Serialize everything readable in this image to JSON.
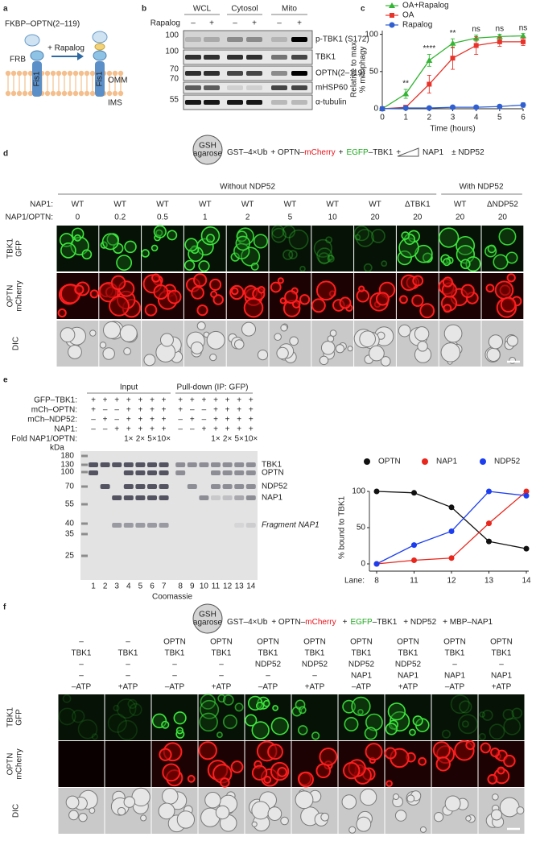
{
  "panels": {
    "a": {
      "label": "a",
      "construct": "FKBP–OPTN(2–119)",
      "treatment": "+ Rapalog",
      "frb": "FRB",
      "fis1": [
        "Fis1",
        "Fis1"
      ],
      "omm": "OMM",
      "ims": "IMS"
    },
    "b": {
      "label": "b",
      "treatment": "Rapalog",
      "groups": [
        "WCL",
        "Cytosol",
        "Mito"
      ],
      "signs": [
        "–",
        "+",
        "–",
        "+",
        "–",
        "+"
      ],
      "markers": [
        100,
        100,
        70,
        70,
        55
      ],
      "blots": [
        "p-TBK1 (S172)",
        "TBK1",
        "OPTN(2–119)",
        "mHSP60",
        "α-tubulin"
      ]
    },
    "c": {
      "label": "c"
    },
    "d": {
      "label": "d",
      "bead": [
        "GSH",
        "agarose"
      ],
      "scheme": [
        {
          "text": "GST–4×Ub"
        },
        {
          "text": "+ OPTN–"
        },
        {
          "text": "mCherry",
          "color": "#e8131b"
        },
        {
          "text": "+"
        },
        {
          "text": "EGFP",
          "color": "#1fa71f"
        },
        {
          "text": "–TBK1"
        },
        {
          "text": "+"
        }
      ],
      "scheme_after_wedge": [
        {
          "text": "NAP1"
        },
        {
          "text": "± NDP52"
        }
      ],
      "groups": [
        "Without NDP52",
        "With NDP52"
      ],
      "row_headers": [
        "NAP1:",
        "NAP1/OPTN:"
      ],
      "columns": [
        {
          "nap1": "WT",
          "ratio": 0
        },
        {
          "nap1": "WT",
          "ratio": 0.2
        },
        {
          "nap1": "WT",
          "ratio": 0.5
        },
        {
          "nap1": "WT",
          "ratio": 1
        },
        {
          "nap1": "WT",
          "ratio": 2
        },
        {
          "nap1": "WT",
          "ratio": 5
        },
        {
          "nap1": "WT",
          "ratio": 10
        },
        {
          "nap1": "WT",
          "ratio": 20
        },
        {
          "nap1": "ΔTBK1",
          "ratio": 20
        },
        {
          "nap1": "WT",
          "ratio": 20
        },
        {
          "nap1": "ΔNDP52",
          "ratio": 20
        }
      ],
      "rows": [
        [
          "TBK1",
          "GFP"
        ],
        [
          "OPTN",
          "mCherry"
        ],
        [
          "DIC"
        ]
      ]
    },
    "e": {
      "label": "e",
      "groups": [
        "Input",
        "Pull-down (IP: GFP)"
      ],
      "conditions": [
        {
          "name": "GFP–TBK1:",
          "signs": [
            "+",
            "+",
            "+",
            "+",
            "+",
            "+",
            "+",
            "+",
            "+",
            "+",
            "+",
            "+",
            "+",
            "+"
          ]
        },
        {
          "name": "mCh–OPTN:",
          "signs": [
            "+",
            "–",
            "–",
            "+",
            "+",
            "+",
            "+",
            "+",
            "–",
            "–",
            "+",
            "+",
            "+",
            "+"
          ]
        },
        {
          "name": "mCh–NDP52:",
          "signs": [
            "–",
            "+",
            "–",
            "+",
            "+",
            "+",
            "+",
            "–",
            "+",
            "–",
            "+",
            "+",
            "+",
            "+"
          ]
        },
        {
          "name": "NAP1:",
          "signs": [
            "–",
            "–",
            "+",
            "+",
            "+",
            "+",
            "+",
            "–",
            "–",
            "+",
            "+",
            "+",
            "+",
            "+"
          ]
        }
      ],
      "fold": {
        "name": "Fold NAP1/OPTN:",
        "values": [
          null,
          null,
          null,
          "1×",
          "2×",
          "5×",
          "10×",
          null,
          null,
          null,
          "1×",
          "2×",
          "5×",
          "10×"
        ]
      },
      "unit": "kDa",
      "markers": [
        180,
        130,
        100,
        70,
        55,
        40,
        35,
        25
      ],
      "bands": [
        "TBK1",
        "OPTN",
        "NDP52",
        "NAP1",
        "Fragment NAP1"
      ],
      "lanes": [
        1,
        2,
        3,
        4,
        5,
        6,
        7,
        8,
        9,
        10,
        11,
        12,
        13,
        14
      ],
      "stain": "Coomassie"
    },
    "f": {
      "label": "f",
      "bead": [
        "GSH",
        "agarose"
      ],
      "scheme": [
        {
          "text": "GST–4×Ub"
        },
        {
          "text": "+ OPTN–"
        },
        {
          "text": "mCherry",
          "color": "#e8131b"
        },
        {
          "text": "+"
        },
        {
          "text": "EGFP",
          "color": "#1fa71f"
        },
        {
          "text": "–TBK1"
        },
        {
          "text": "+ NDP52"
        },
        {
          "text": "+ MBP–NAP1"
        }
      ],
      "columns": [
        [
          "–",
          "TBK1",
          "–",
          "–",
          "–ATP"
        ],
        [
          "–",
          "TBK1",
          "–",
          "–",
          "+ATP"
        ],
        [
          "OPTN",
          "TBK1",
          "–",
          "–",
          "–ATP"
        ],
        [
          "OPTN",
          "TBK1",
          "–",
          "–",
          "+ATP"
        ],
        [
          "OPTN",
          "TBK1",
          "NDP52",
          "–",
          "–ATP"
        ],
        [
          "OPTN",
          "TBK1",
          "NDP52",
          "–",
          "+ATP"
        ],
        [
          "OPTN",
          "TBK1",
          "NDP52",
          "NAP1",
          "–ATP"
        ],
        [
          "OPTN",
          "TBK1",
          "NDP52",
          "NAP1",
          "+ATP"
        ],
        [
          "OPTN",
          "TBK1",
          "–",
          "NAP1",
          "–ATP"
        ],
        [
          "OPTN",
          "TBK1",
          "–",
          "NAP1",
          "+ATP"
        ]
      ],
      "rows": [
        [
          "TBK1",
          "GFP"
        ],
        [
          "OPTN",
          "mCherry"
        ],
        [
          "DIC"
        ]
      ]
    }
  },
  "chart_data": [
    {
      "type": "line",
      "x": [
        0,
        1,
        2,
        3,
        4,
        5,
        6
      ],
      "xlim": [
        0,
        6
      ],
      "xticks": [
        0,
        1,
        2,
        3,
        4,
        5,
        6
      ],
      "ylim": [
        0,
        105
      ],
      "yticks": [
        0,
        50,
        100
      ],
      "xlabel": "Time (hours)",
      "ylabel": [
        "Relative to max",
        "% mitophagy"
      ],
      "legend": "top-left",
      "series": [
        {
          "name": "OA+Rapalog",
          "color": "#35b535",
          "marker": "triangle",
          "values": [
            0,
            20,
            65,
            88,
            95,
            97,
            98
          ],
          "errors": [
            0,
            6,
            8,
            6,
            4,
            3,
            3
          ]
        },
        {
          "name": "OA",
          "color": "#e8332a",
          "marker": "square",
          "values": [
            0,
            2,
            33,
            68,
            85,
            90,
            90
          ],
          "errors": [
            0,
            2,
            12,
            15,
            12,
            6,
            5
          ]
        },
        {
          "name": "Rapalog",
          "color": "#2f5fd0",
          "marker": "circle",
          "values": [
            0,
            1,
            1,
            2,
            2,
            3,
            5
          ],
          "errors": [
            0,
            1,
            1,
            1,
            1,
            2,
            3
          ]
        }
      ],
      "annotations": [
        {
          "x": 1,
          "text": "**"
        },
        {
          "x": 2,
          "text": "****"
        },
        {
          "x": 3,
          "text": "**"
        },
        {
          "x": 4,
          "text": "ns"
        },
        {
          "x": 5,
          "text": "ns"
        },
        {
          "x": 6,
          "text": "ns"
        }
      ]
    },
    {
      "type": "line",
      "categories": [
        "8",
        "11",
        "12",
        "13",
        "14"
      ],
      "xlabel": "Lane:",
      "ylim": [
        0,
        100
      ],
      "yticks": [
        0,
        50,
        100
      ],
      "ylabel": "% bound to TBK1",
      "legend": "top",
      "series": [
        {
          "name": "OPTN",
          "color": "#111111",
          "values": [
            100,
            98,
            78,
            31,
            21
          ]
        },
        {
          "name": "NAP1",
          "color": "#e8261c",
          "values": [
            0,
            5,
            8,
            56,
            100
          ]
        },
        {
          "name": "NDP52",
          "color": "#1c3ef0",
          "values": [
            0,
            26,
            45,
            100,
            94
          ]
        }
      ]
    }
  ]
}
